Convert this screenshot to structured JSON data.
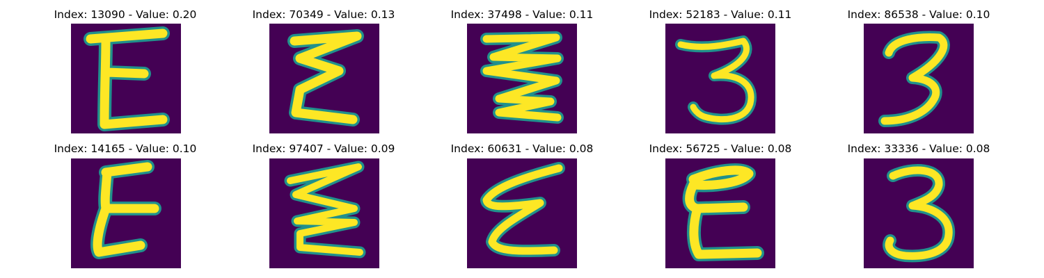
{
  "figure": {
    "background": "#ffffff",
    "panel_background": "#440154",
    "stroke_color_outer": "#21918c",
    "stroke_color_mid": "#7ad151",
    "stroke_color_core": "#fde725"
  },
  "panels": [
    {
      "title": "Index: 13090 - Value: 0.20",
      "glyph": "E-block"
    },
    {
      "title": "Index: 70349 - Value: 0.13",
      "glyph": "E-zigzag"
    },
    {
      "title": "Index: 37498 - Value: 0.11",
      "glyph": "Z-zigzag"
    },
    {
      "title": "Index: 52183 - Value: 0.11",
      "glyph": "three"
    },
    {
      "title": "Index: 86538 - Value: 0.10",
      "glyph": "three"
    },
    {
      "title": "Index: 14165 - Value: 0.10",
      "glyph": "E-cursive"
    },
    {
      "title": "Index: 97407 - Value: 0.09",
      "glyph": "E-zigzag-wide"
    },
    {
      "title": "Index: 60631 - Value: 0.08",
      "glyph": "E-script"
    },
    {
      "title": "Index: 56725 - Value: 0.08",
      "glyph": "E-block"
    },
    {
      "title": "Index: 33336 - Value: 0.08",
      "glyph": "three"
    }
  ]
}
